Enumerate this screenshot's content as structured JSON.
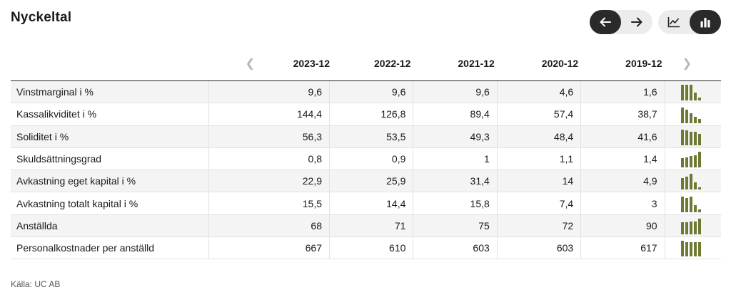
{
  "title": "Nyckeltal",
  "controls": {
    "prev_icon": "arrow-left-icon",
    "next_icon": "arrow-right-icon",
    "line_icon": "line-chart-icon",
    "bar_icon": "bar-chart-icon"
  },
  "header": {
    "years": [
      "2023-12",
      "2022-12",
      "2021-12",
      "2020-12",
      "2019-12"
    ]
  },
  "rows": [
    {
      "label": "Vinstmarginal i %",
      "values": [
        "9,6",
        "9,6",
        "9,6",
        "4,6",
        "1,6"
      ],
      "num": [
        9.6,
        9.6,
        9.6,
        4.6,
        1.6
      ]
    },
    {
      "label": "Kassalikviditet i %",
      "values": [
        "144,4",
        "126,8",
        "89,4",
        "57,4",
        "38,7"
      ],
      "num": [
        144.4,
        126.8,
        89.4,
        57.4,
        38.7
      ]
    },
    {
      "label": "Soliditet i %",
      "values": [
        "56,3",
        "53,5",
        "49,3",
        "48,4",
        "41,6"
      ],
      "num": [
        56.3,
        53.5,
        49.3,
        48.4,
        41.6
      ]
    },
    {
      "label": "Skuldsättningsgrad",
      "values": [
        "0,8",
        "0,9",
        "1",
        "1,1",
        "1,4"
      ],
      "num": [
        0.8,
        0.9,
        1,
        1.1,
        1.4
      ]
    },
    {
      "label": "Avkastning eget kapital i %",
      "values": [
        "22,9",
        "25,9",
        "31,4",
        "14",
        "4,9"
      ],
      "num": [
        22.9,
        25.9,
        31.4,
        14,
        4.9
      ]
    },
    {
      "label": "Avkastning totalt kapital i %",
      "values": [
        "15,5",
        "14,4",
        "15,8",
        "7,4",
        "3"
      ],
      "num": [
        15.5,
        14.4,
        15.8,
        7.4,
        3
      ]
    },
    {
      "label": "Anställda",
      "values": [
        "68",
        "71",
        "75",
        "72",
        "90"
      ],
      "num": [
        68,
        71,
        75,
        72,
        90
      ]
    },
    {
      "label": "Personalkostnader per anställd",
      "values": [
        "667",
        "610",
        "603",
        "603",
        "617"
      ],
      "num": [
        667,
        610,
        603,
        603,
        617
      ]
    }
  ],
  "source": "Källa: UC AB",
  "colors": {
    "spark": "#6d7a33",
    "active": "#2a2a2a"
  }
}
